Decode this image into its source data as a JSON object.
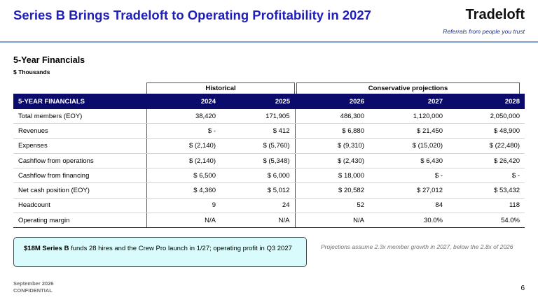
{
  "header": {
    "title": "Series B Brings Tradeloft to Operating Profitability in 2027",
    "brand": "Tradeloft",
    "tagline": "Referrals from people you trust"
  },
  "section": {
    "title": "5-Year Financials",
    "units": "$ Thousands"
  },
  "table": {
    "groups": {
      "historical": "Historical",
      "projections": "Conservative projections"
    },
    "header_label": "5-YEAR FINANCIALS",
    "years": [
      "2024",
      "2025",
      "2026",
      "2027",
      "2028"
    ],
    "rows": [
      {
        "label": "Total members (EOY)",
        "values": [
          "38,420",
          "171,905",
          "486,300",
          "1,120,000",
          "2,050,000"
        ]
      },
      {
        "label": "Revenues",
        "values": [
          "$ -",
          "$ 412",
          "$ 6,880",
          "$ 21,450",
          "$ 48,900"
        ]
      },
      {
        "label": "Expenses",
        "values": [
          "$ (2,140)",
          "$ (5,760)",
          "$ (9,310)",
          "$ (15,020)",
          "$ (22,480)"
        ]
      },
      {
        "label": "Cashflow from operations",
        "values": [
          "$ (2,140)",
          "$ (5,348)",
          "$ (2,430)",
          "$ 6,430",
          "$ 26,420"
        ]
      },
      {
        "label": "Cashflow from financing",
        "values": [
          "$ 6,500",
          "$ 6,000",
          "$ 18,000",
          "$ -",
          "$ -"
        ]
      },
      {
        "label": "Net cash position (EOY)",
        "values": [
          "$ 4,360",
          "$ 5,012",
          "$ 20,582",
          "$ 27,012",
          "$ 53,432"
        ]
      },
      {
        "label": "Headcount",
        "values": [
          "9",
          "24",
          "52",
          "84",
          "118"
        ]
      },
      {
        "label": "Operating margin",
        "values": [
          "N/A",
          "N/A",
          "N/A",
          "30.0%",
          "54.0%"
        ]
      }
    ]
  },
  "callout": {
    "bold": "$18M Series B",
    "text": " funds 28 hires and the Crew Pro launch in 1/27; operating profit in Q3 2027"
  },
  "note": "Projections assume 2.3x member growth in 2027, below the 2.8x of 2026",
  "footer": {
    "date": "September 2026",
    "confidential": "CONFIDENTIAL",
    "page": "6"
  },
  "colors": {
    "title": "#1f1fb8",
    "table_header": "#0b0b6b",
    "rule": "#7da0cf",
    "callout_bg": "#d9fbfb"
  }
}
